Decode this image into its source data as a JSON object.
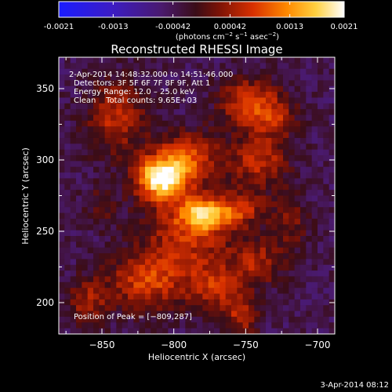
{
  "colorbar": {
    "ticks": [
      "-0.0021",
      "-0.0013",
      "-0.00042",
      "0.00042",
      "0.0013",
      "0.0021"
    ],
    "tick_values": [
      -0.0021,
      -0.0013,
      -0.00042,
      0.00042,
      0.0013,
      0.0021
    ],
    "range": [
      -0.0021,
      0.0021
    ],
    "units_main": "(photons cm",
    "units_sup1": "−2",
    "units_mid": " s",
    "units_sup2": "−1",
    "units_mid2": " asec",
    "units_sup3": "−2",
    "units_end": ")",
    "colormap": "rainbow-to-hot (blue → purple → red → orange → yellow → white)"
  },
  "chart_data": {
    "type": "heatmap",
    "title": "Reconstructed RHESSI Image",
    "xlabel": "Heliocentric X (arcsec)",
    "ylabel": "Heliocentric Y (arcsec)",
    "xlim": [
      -880,
      -688
    ],
    "ylim": [
      178,
      372
    ],
    "xticks": [
      -850,
      -800,
      -750,
      -700
    ],
    "yticks": [
      200,
      250,
      300,
      350
    ],
    "xtick_labels": [
      "−850",
      "−800",
      "−750",
      "−700"
    ],
    "ytick_labels": [
      "200",
      "250",
      "300",
      "350"
    ],
    "annotation_lines": [
      " 2-Apr-2014 14:48:32.000 to 14:51:46.000",
      "Detectors: 3F 5F 6F 7F 8F 9F, Att 1",
      "Energy Range: 12.0 – 25.0 keV",
      "Clean    Total counts: 9.65E+03"
    ],
    "peak_label": "Position of Peak = [−809,287]",
    "peak": [
      -809,
      287
    ],
    "intensity_sources": [
      {
        "x": -809,
        "y": 287,
        "sx": 12,
        "sy": 10,
        "amp": 0.0024
      },
      {
        "x": -790,
        "y": 303,
        "sx": 16,
        "sy": 12,
        "amp": 0.0012
      },
      {
        "x": -778,
        "y": 262,
        "sx": 12,
        "sy": 8,
        "amp": 0.0016
      },
      {
        "x": -790,
        "y": 248,
        "sx": 22,
        "sy": 22,
        "amp": 0.001
      },
      {
        "x": -752,
        "y": 266,
        "sx": 10,
        "sy": 8,
        "amp": 0.0009
      },
      {
        "x": -740,
        "y": 300,
        "sx": 14,
        "sy": 14,
        "amp": 0.001
      },
      {
        "x": -748,
        "y": 340,
        "sx": 14,
        "sy": 12,
        "amp": 0.0012
      },
      {
        "x": -728,
        "y": 330,
        "sx": 10,
        "sy": 10,
        "amp": 0.0007
      },
      {
        "x": -840,
        "y": 330,
        "sx": 14,
        "sy": 18,
        "amp": 0.001
      },
      {
        "x": -820,
        "y": 215,
        "sx": 18,
        "sy": 14,
        "amp": 0.0011
      },
      {
        "x": -770,
        "y": 210,
        "sx": 14,
        "sy": 12,
        "amp": 0.0009
      },
      {
        "x": -742,
        "y": 228,
        "sx": 12,
        "sy": 12,
        "amp": 0.0008
      },
      {
        "x": -720,
        "y": 255,
        "sx": 10,
        "sy": 14,
        "amp": 0.0006
      },
      {
        "x": -850,
        "y": 268,
        "sx": 8,
        "sy": 10,
        "amp": 0.0005
      },
      {
        "x": -860,
        "y": 200,
        "sx": 10,
        "sy": 12,
        "amp": 0.0008
      },
      {
        "x": -752,
        "y": 190,
        "sx": 8,
        "sy": 8,
        "amp": 0.0009
      }
    ],
    "background_level": -0.0004
  },
  "footer": {
    "timestamp": "3-Apr-2014 08:12"
  }
}
